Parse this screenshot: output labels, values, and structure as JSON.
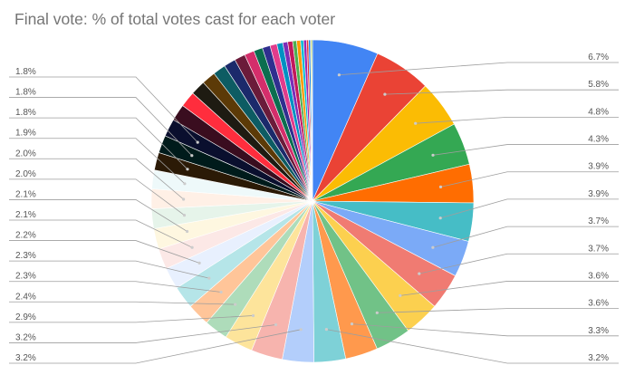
{
  "chart_data": {
    "type": "pie",
    "title": "Final vote: % of total votes cast for each voter",
    "slices": [
      {
        "value": 6.7,
        "label": "6.7%",
        "color": "#4285f4"
      },
      {
        "value": 5.8,
        "label": "5.8%",
        "color": "#ea4335"
      },
      {
        "value": 4.8,
        "label": "4.8%",
        "color": "#fbbc04"
      },
      {
        "value": 4.3,
        "label": "4.3%",
        "color": "#34a853"
      },
      {
        "value": 3.9,
        "label": "3.9%",
        "color": "#ff6d01"
      },
      {
        "value": 3.9,
        "label": "3.9%",
        "color": "#46bdc6"
      },
      {
        "value": 3.7,
        "label": "3.7%",
        "color": "#7baaf7"
      },
      {
        "value": 3.7,
        "label": "3.7%",
        "color": "#f07b72"
      },
      {
        "value": 3.6,
        "label": "3.6%",
        "color": "#fcd04f"
      },
      {
        "value": 3.6,
        "label": "3.6%",
        "color": "#71c287"
      },
      {
        "value": 3.3,
        "label": "3.3%",
        "color": "#ff994d"
      },
      {
        "value": 3.2,
        "label": "3.2%",
        "color": "#7ed1d7"
      },
      {
        "value": 3.2,
        "label": "3.2%",
        "color": "#b3cefb"
      },
      {
        "value": 3.2,
        "label": "3.2%",
        "color": "#f7b4ae"
      },
      {
        "value": 2.9,
        "label": "2.9%",
        "color": "#fde49b"
      },
      {
        "value": 2.4,
        "label": "2.4%",
        "color": "#aedcba"
      },
      {
        "value": 2.3,
        "label": "2.3%",
        "color": "#ffc599"
      },
      {
        "value": 2.3,
        "label": "2.3%",
        "color": "#b5e5e8"
      },
      {
        "value": 2.2,
        "label": "2.2%",
        "color": "#e8f0fe"
      },
      {
        "value": 2.1,
        "label": "2.1%",
        "color": "#fce8e6"
      },
      {
        "value": 2.1,
        "label": "2.1%",
        "color": "#fef7e0"
      },
      {
        "value": 2.0,
        "label": "2.0%",
        "color": "#e6f4ea"
      },
      {
        "value": 2.0,
        "label": "2.0%",
        "color": "#fff0e6"
      },
      {
        "value": 1.9,
        "label": "1.9%",
        "color": "#eef9fa"
      },
      {
        "value": 1.8,
        "label": "1.8%",
        "color": "#2b1a06"
      },
      {
        "value": 1.8,
        "label": "1.8%",
        "color": "#001b1b"
      },
      {
        "value": 1.8,
        "label": "1.8%",
        "color": "#0a0f2e"
      },
      {
        "value": 1.7,
        "color": "#3a0d1f"
      },
      {
        "value": 1.6,
        "color": "#ff2d3d"
      },
      {
        "value": 1.5,
        "color": "#1e1b12"
      },
      {
        "value": 1.4,
        "color": "#5c3a07"
      },
      {
        "value": 1.3,
        "color": "#0d5c63"
      },
      {
        "value": 1.2,
        "color": "#1b2a6b"
      },
      {
        "value": 1.1,
        "color": "#6b1b3a"
      },
      {
        "value": 1.0,
        "color": "#d42e6b"
      },
      {
        "value": 0.9,
        "color": "#0b6e4f"
      },
      {
        "value": 0.8,
        "color": "#2f2f8f"
      },
      {
        "value": 0.7,
        "color": "#e13c8c"
      },
      {
        "value": 0.6,
        "color": "#0091c2"
      },
      {
        "value": 0.5,
        "color": "#7c2db8"
      },
      {
        "value": 0.5,
        "color": "#c2185b"
      },
      {
        "value": 0.4,
        "color": "#4caf50"
      },
      {
        "value": 0.4,
        "color": "#ff9800"
      },
      {
        "value": 0.3,
        "color": "#00bcd4"
      },
      {
        "value": 0.3,
        "color": "#9c27b0"
      },
      {
        "value": 0.2,
        "color": "#e53935"
      },
      {
        "value": 0.2,
        "color": "#1e88e5"
      },
      {
        "value": 0.1,
        "color": "#fdd835"
      },
      {
        "value": 0.1,
        "color": "#43a047"
      }
    ]
  }
}
